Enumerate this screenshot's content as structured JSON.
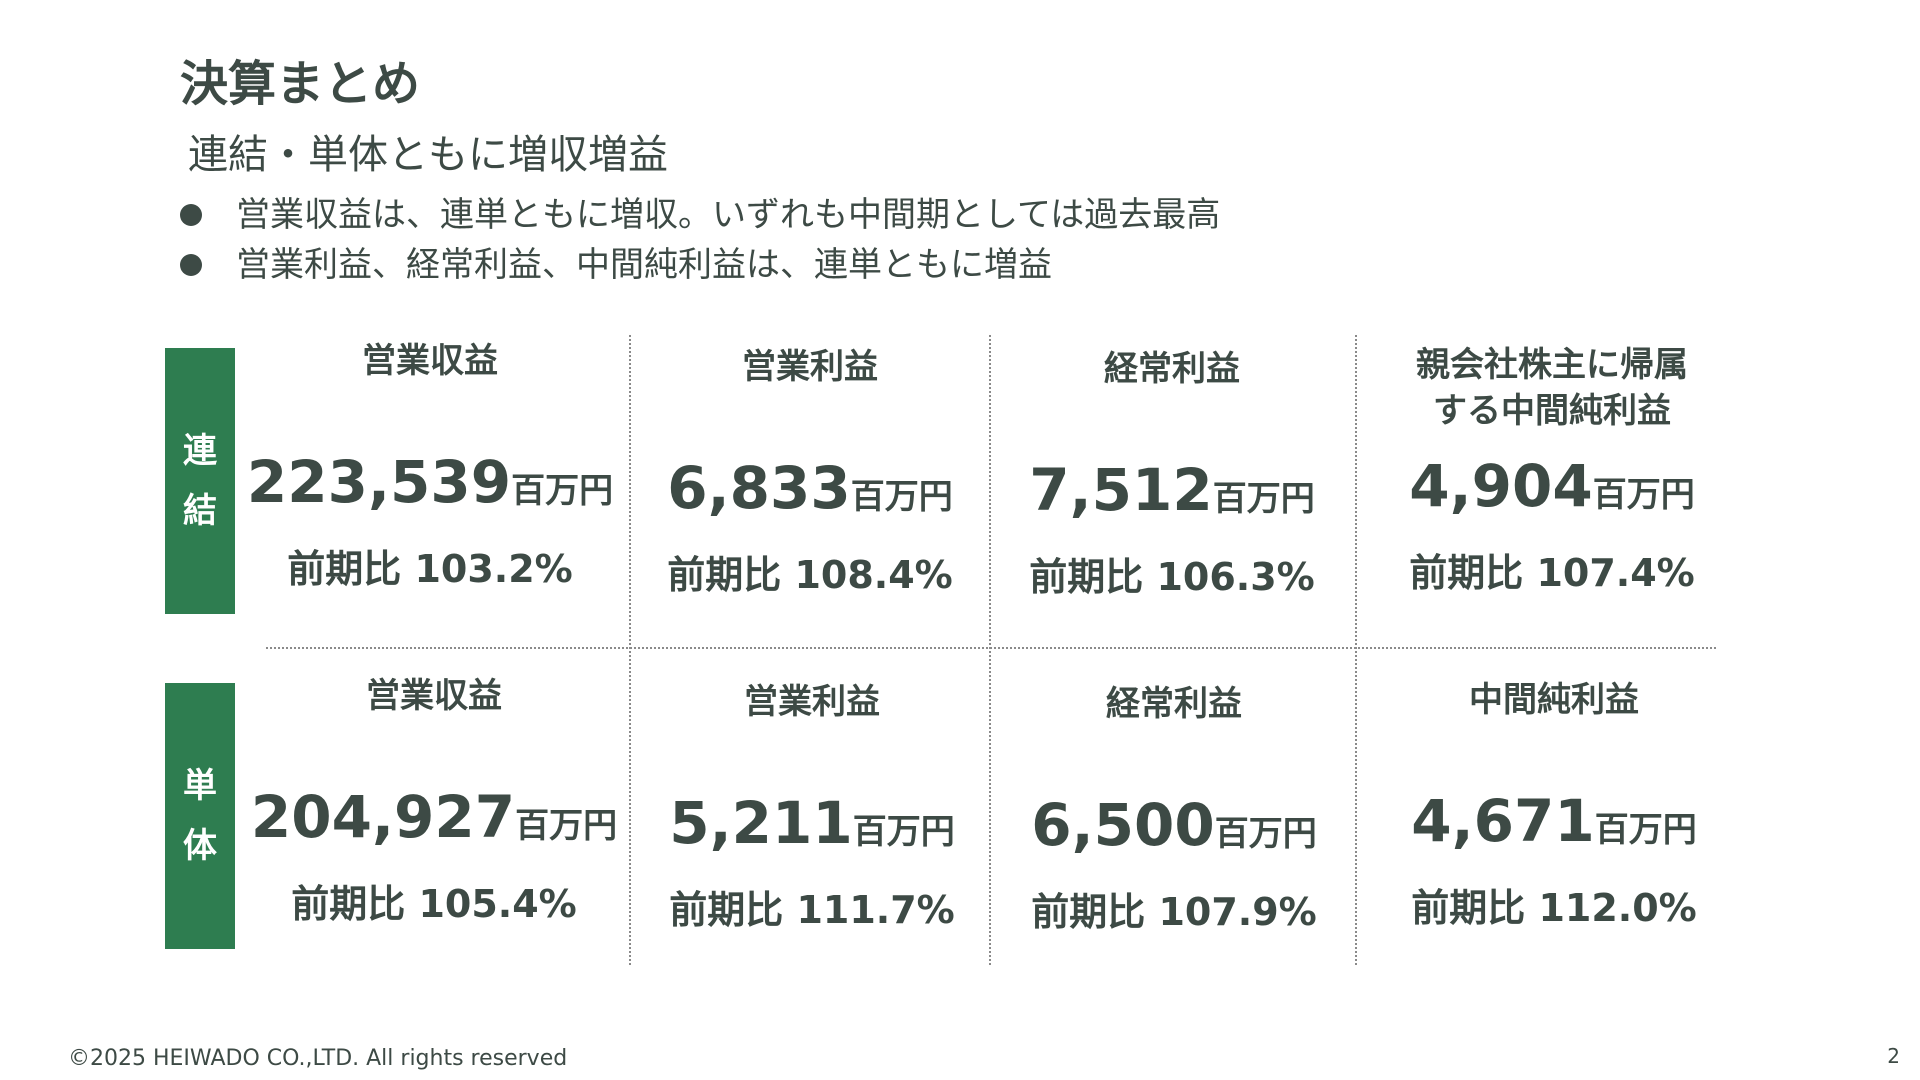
{
  "title": "決算まとめ",
  "subtitle": "連結・単体ともに増収増益",
  "bullets": [
    "営業収益は、連単ともに増収。いずれも中間期としては過去最高",
    "営業利益、経常利益、中間純利益は、連単ともに増益"
  ],
  "consolidated": {
    "tag_line1": "連",
    "tag_line2": "結",
    "items": [
      {
        "label": "営業収益",
        "value": "223,539",
        "unit": "百万円",
        "ratio": "前期比 103.2%"
      },
      {
        "label": "営業利益",
        "value": "6,833",
        "unit": "百万円",
        "ratio": "前期比 108.4%"
      },
      {
        "label": "経常利益",
        "value": "7,512",
        "unit": "百万円",
        "ratio": "前期比 106.3%"
      },
      {
        "label": "親会社株主に帰属\nする中間純利益",
        "value": "4,904",
        "unit": "百万円",
        "ratio": "前期比 107.4%"
      }
    ]
  },
  "standalone": {
    "tag_line1": "単",
    "tag_line2": "体",
    "items": [
      {
        "label": "営業収益",
        "value": "204,927",
        "unit": "百万円",
        "ratio": "前期比 105.4%"
      },
      {
        "label": "営業利益",
        "value": "5,211",
        "unit": "百万円",
        "ratio": "前期比 111.7%"
      },
      {
        "label": "経常利益",
        "value": "6,500",
        "unit": "百万円",
        "ratio": "前期比 107.9%"
      },
      {
        "label": "中間純利益",
        "value": "4,671",
        "unit": "百万円",
        "ratio": "前期比 112.0%"
      }
    ]
  },
  "footer": "©2025  HEIWADO CO.,LTD.  All rights reserved",
  "page_number": "2",
  "colors": {
    "accent": "#2e7d50",
    "text": "#3d4a45"
  }
}
